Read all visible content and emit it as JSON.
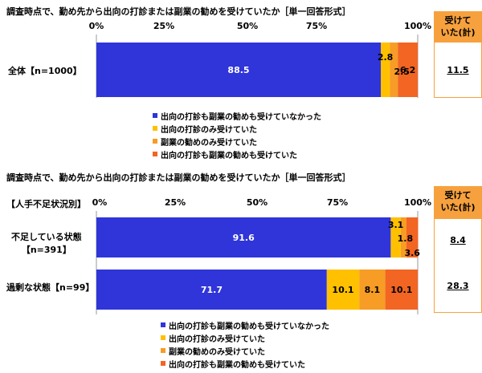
{
  "colors": {
    "blue": "#2f35d8",
    "yellow": "#ffc000",
    "orange": "#f79c24",
    "dark_orange": "#f26522",
    "side_header": "#f7a13e"
  },
  "chart1": {
    "title": "調査時点で、勤め先から出向の打診または副業の勧めを受けていたか［単一回答形式］",
    "ticks": [
      "0%",
      "25%",
      "50%",
      "75%",
      "100%"
    ],
    "side_header": [
      "受けて",
      "いた(計)"
    ],
    "legend": [
      "出向の打診も副業の勧めも受けていなかった",
      "出向の打診のみ受けていた",
      "副業の勧めのみ受けていた",
      "出向の打診も副業の勧めも受けていた"
    ],
    "row_labels": [
      [
        "全体【n=1000】"
      ]
    ],
    "side_values": [
      "11.5"
    ]
  },
  "chart2": {
    "title": "調査時点で、勤め先から出向の打診または副業の勧めを受けていたか［単一回答形式］",
    "group_label": "【人手不足状況別】",
    "ticks": [
      "0%",
      "25%",
      "50%",
      "75%",
      "100%"
    ],
    "side_header": [
      "受けて",
      "いた(計)"
    ],
    "legend": [
      "出向の打診も副業の勧めも受けていなかった",
      "出向の打診のみ受けていた",
      "副業の勧めのみ受けていた",
      "出向の打診も副業の勧めも受けていた"
    ],
    "row_labels": [
      [
        "不足している状態",
        "【n=391】"
      ],
      [
        "過剰な状態【n=99】"
      ]
    ],
    "side_values": [
      "8.4",
      "28.3"
    ]
  },
  "chart_data": [
    {
      "type": "bar",
      "orientation": "horizontal",
      "stacked": true,
      "title": "調査時点で、勤め先から出向の打診または副業の勧めを受けていたか［単一回答形式］",
      "categories": [
        "全体【n=1000】"
      ],
      "xlim": [
        0,
        100
      ],
      "series": [
        {
          "name": "出向の打診も副業の勧めも受けていなかった",
          "values": [
            88.5
          ]
        },
        {
          "name": "出向の打診のみ受けていた",
          "values": [
            2.8
          ]
        },
        {
          "name": "副業の勧めのみ受けていた",
          "values": [
            2.5
          ]
        },
        {
          "name": "出向の打診も副業の勧めも受けていた",
          "values": [
            6.2
          ]
        }
      ],
      "legend_position": "bottom"
    },
    {
      "type": "bar",
      "orientation": "horizontal",
      "stacked": true,
      "title": "調査時点で、勤め先から出向の打診または副業の勧めを受けていたか［単一回答形式］",
      "categories": [
        "不足している状態【n=391】",
        "過剰な状態【n=99】"
      ],
      "xlim": [
        0,
        100
      ],
      "series": [
        {
          "name": "出向の打診も副業の勧めも受けていなかった",
          "values": [
            91.6,
            71.7
          ]
        },
        {
          "name": "出向の打診のみ受けていた",
          "values": [
            3.1,
            10.1
          ]
        },
        {
          "name": "副業の勧めのみ受けていた",
          "values": [
            1.8,
            8.1
          ]
        },
        {
          "name": "出向の打診も副業の勧めも受けていた",
          "values": [
            3.6,
            10.1
          ]
        }
      ],
      "legend_position": "bottom"
    }
  ]
}
